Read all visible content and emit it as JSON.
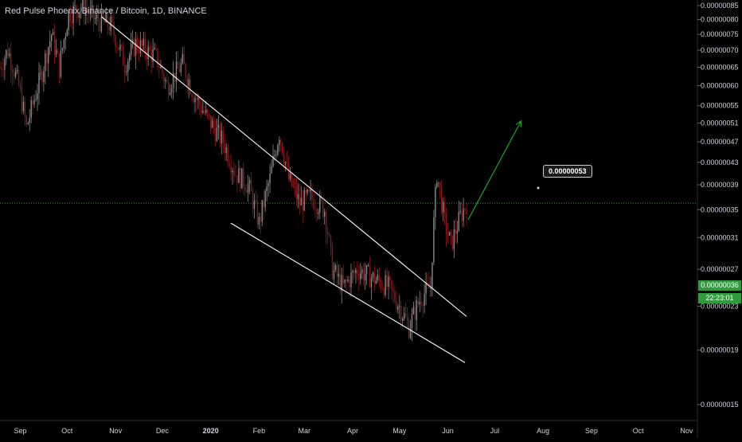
{
  "header": {
    "title": "Red Pulse Phoenix Binance / Bitcoin, 1D, BINANCE"
  },
  "annotations": {
    "target_price": "0.00000053"
  },
  "price_badge": {
    "price": "0.00000036",
    "countdown": "22:23:01"
  },
  "colors": {
    "up": "#8a8a8a",
    "down": "#8b1a1a",
    "trendline": "#ffffff",
    "arrow": "#1fa22a",
    "current_line": "#2e9e3c",
    "badge": "#2e9e3c"
  },
  "chart_data": {
    "type": "candlestick",
    "title": "Red Pulse Phoenix Binance / Bitcoin, 1D, BINANCE",
    "xlabel": "",
    "ylabel": "",
    "x_ticks": [
      "Sep",
      "Oct",
      "Nov",
      "Dec",
      "2020",
      "Feb",
      "Mar",
      "Apr",
      "May",
      "Jun",
      "Jul",
      "Aug",
      "Sep",
      "Oct",
      "Nov"
    ],
    "y_ticks": [
      "0.00000015",
      "0.00000019",
      "0.00000023",
      "0.00000027",
      "0.00000031",
      "0.00000035",
      "0.00000039",
      "0.00000043",
      "0.00000047",
      "0.00000051",
      "0.00000055",
      "0.00000060",
      "0.00000065",
      "0.00000070",
      "0.00000075",
      "0.00000080",
      "0.00000085"
    ],
    "y_tick_values": [
      15,
      19,
      23,
      27,
      31,
      35,
      39,
      43,
      47,
      51,
      55,
      60,
      65,
      70,
      75,
      80,
      85
    ],
    "y_scale": "log",
    "y_unit_note": "values in 1e-8 BTC",
    "ylim": [
      14,
      86
    ],
    "current_price": 36,
    "anchors": [
      [
        "2019-08-20",
        65
      ],
      [
        "2019-08-25",
        70
      ],
      [
        "2019-09-01",
        60
      ],
      [
        "2019-09-06",
        50
      ],
      [
        "2019-09-15",
        62
      ],
      [
        "2019-09-22",
        75
      ],
      [
        "2019-09-27",
        65
      ],
      [
        "2019-10-03",
        82
      ],
      [
        "2019-10-12",
        85
      ],
      [
        "2019-10-20",
        80
      ],
      [
        "2019-10-30",
        78
      ],
      [
        "2019-11-08",
        66
      ],
      [
        "2019-11-15",
        72
      ],
      [
        "2019-11-28",
        68
      ],
      [
        "2019-12-05",
        60
      ],
      [
        "2019-12-15",
        66
      ],
      [
        "2019-12-22",
        58
      ],
      [
        "2019-12-31",
        52
      ],
      [
        "2020-01-10",
        47
      ],
      [
        "2020-01-18",
        41
      ],
      [
        "2020-01-26",
        39
      ],
      [
        "2020-02-02",
        33
      ],
      [
        "2020-02-09",
        40
      ],
      [
        "2020-02-15",
        49
      ],
      [
        "2020-02-21",
        40
      ],
      [
        "2020-02-28",
        36
      ],
      [
        "2020-03-06",
        37
      ],
      [
        "2020-03-15",
        35
      ],
      [
        "2020-03-20",
        27
      ],
      [
        "2020-03-27",
        25
      ],
      [
        "2020-04-05",
        27
      ],
      [
        "2020-04-15",
        26
      ],
      [
        "2020-04-25",
        25
      ],
      [
        "2020-05-02",
        23
      ],
      [
        "2020-05-08",
        21
      ],
      [
        "2020-05-16",
        24
      ],
      [
        "2020-05-22",
        25
      ],
      [
        "2020-05-26",
        41
      ],
      [
        "2020-05-31",
        33
      ],
      [
        "2020-06-04",
        30
      ],
      [
        "2020-06-10",
        34
      ],
      [
        "2020-06-14",
        36
      ]
    ],
    "trendlines": [
      {
        "name": "upper-resistance",
        "points": [
          [
            "2019-10-24",
            81
          ],
          [
            "2020-06-14",
            22
          ]
        ]
      },
      {
        "name": "lower-support",
        "points": [
          [
            "2020-01-15",
            33
          ],
          [
            "2020-06-13",
            18
          ]
        ]
      }
    ],
    "projection_arrow": {
      "from": [
        "2020-06-15",
        33.5
      ],
      "to": [
        "2020-07-19",
        51.5
      ]
    },
    "target": 53
  }
}
